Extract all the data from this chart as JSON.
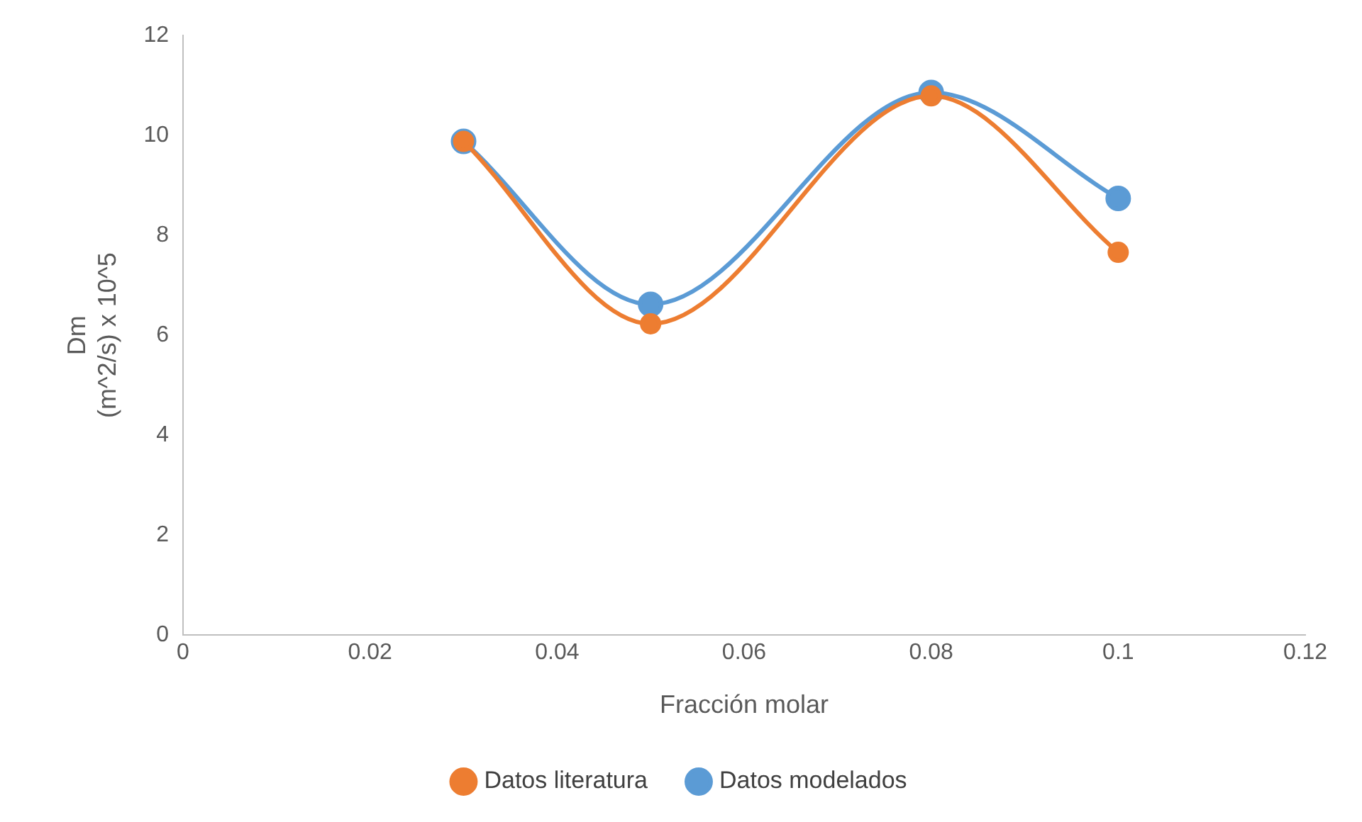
{
  "chart_data": {
    "type": "line",
    "xlabel": "Fracción molar",
    "ylabel": "Dm\n(m^2/s) x 10^5",
    "x": [
      0.03,
      0.05,
      0.08,
      0.1
    ],
    "series": [
      {
        "name": "Datos modelados",
        "color": "#5b9bd5",
        "values": [
          9.88,
          6.62,
          10.86,
          8.74
        ]
      },
      {
        "name": "Datos literatura",
        "color": "#ed7d31",
        "values": [
          9.88,
          6.23,
          10.79,
          7.66
        ]
      }
    ],
    "xlim": [
      0,
      0.12
    ],
    "xticks": [
      0,
      0.02,
      0.04,
      0.06,
      0.08,
      0.1,
      0.12
    ],
    "ylim": [
      0,
      12
    ],
    "yticks": [
      0,
      2,
      4,
      6,
      8,
      10,
      12
    ],
    "grid": false,
    "legend": "bottom",
    "marker": "circle",
    "line_style": "solid"
  }
}
